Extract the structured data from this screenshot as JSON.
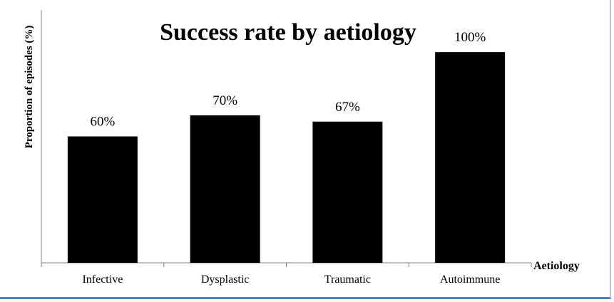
{
  "chart_data": {
    "type": "bar",
    "title": "Success rate by aetiology",
    "xlabel": "Aetiology",
    "ylabel": "Proportion of episodes (%)",
    "categories": [
      "Infective",
      "Dysplastic",
      "Traumatic",
      "Autoimmune"
    ],
    "values": [
      60,
      70,
      67,
      100
    ],
    "data_labels": [
      "60%",
      "70%",
      "67%",
      "100%"
    ],
    "ylim": [
      0,
      120
    ],
    "grid": false,
    "legend": "none",
    "bar_color": "#000000"
  }
}
